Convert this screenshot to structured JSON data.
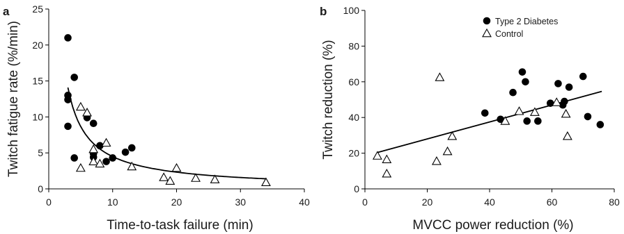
{
  "chart_data": [
    {
      "panel_label": "a",
      "type": "scatter",
      "xlabel": "Time-to-task failure (min)",
      "ylabel": "Twitch fatigue rate (%/min)",
      "xlim": [
        0,
        40
      ],
      "ylim": [
        0,
        25
      ],
      "xticks": [
        "0",
        "10",
        "20",
        "30",
        "40"
      ],
      "yticks": [
        "0",
        "5",
        "10",
        "15",
        "20",
        "25"
      ],
      "series": [
        {
          "name": "Type 2 Diabetes",
          "marker": "filled-circle",
          "points": [
            [
              3,
              21
            ],
            [
              3,
              13
            ],
            [
              3,
              12.4
            ],
            [
              3,
              8.7
            ],
            [
              4,
              15.5
            ],
            [
              4,
              4.3
            ],
            [
              6,
              9.9
            ],
            [
              7,
              4.9
            ],
            [
              7,
              4.4
            ],
            [
              7,
              9.1
            ],
            [
              8,
              6
            ],
            [
              9,
              3.8
            ],
            [
              10,
              4.3
            ],
            [
              12,
              5.1
            ],
            [
              13,
              5.7
            ]
          ]
        },
        {
          "name": "Control",
          "marker": "open-triangle",
          "points": [
            [
              5,
              11.4
            ],
            [
              6,
              10.6
            ],
            [
              7,
              5.5
            ],
            [
              7,
              3.8
            ],
            [
              8,
              3.5
            ],
            [
              9,
              6.4
            ],
            [
              5,
              2.9
            ],
            [
              13,
              3.1
            ],
            [
              18,
              1.6
            ],
            [
              19,
              1.1
            ],
            [
              20,
              2.9
            ],
            [
              23,
              1.5
            ],
            [
              26,
              1.3
            ],
            [
              34,
              0.9
            ]
          ]
        }
      ],
      "fit": {
        "kind": "power",
        "a": 40,
        "b": -0.95,
        "x_range": [
          3,
          34
        ]
      }
    },
    {
      "panel_label": "b",
      "type": "scatter",
      "xlabel": "MVCC power reduction (%)",
      "ylabel": "Twitch reduction (%)",
      "xlim": [
        0,
        80
      ],
      "ylim": [
        0,
        100
      ],
      "xticks": [
        "0",
        "20",
        "40",
        "60",
        "80"
      ],
      "yticks": [
        "0",
        "20",
        "40",
        "60",
        "80",
        "100"
      ],
      "legend": {
        "position": "top-right",
        "entries": [
          {
            "label": "Type 2 Diabetes",
            "marker": "filled-circle"
          },
          {
            "label": "Control",
            "marker": "open-triangle"
          }
        ]
      },
      "series": [
        {
          "name": "Type 2 Diabetes",
          "marker": "filled-circle",
          "points": [
            [
              38.5,
              42.5
            ],
            [
              43.5,
              39
            ],
            [
              47.5,
              54
            ],
            [
              50.5,
              65.5
            ],
            [
              51.5,
              60
            ],
            [
              52,
              38
            ],
            [
              55.5,
              38
            ],
            [
              59.5,
              48
            ],
            [
              62,
              59
            ],
            [
              63.5,
              47
            ],
            [
              64,
              49
            ],
            [
              65.5,
              57
            ],
            [
              70,
              63
            ],
            [
              71.5,
              40.5
            ],
            [
              75.5,
              36
            ]
          ]
        },
        {
          "name": "Control",
          "marker": "open-triangle",
          "points": [
            [
              4,
              18.5
            ],
            [
              7,
              16.5
            ],
            [
              7,
              8.5
            ],
            [
              23,
              15.5
            ],
            [
              24,
              62.5
            ],
            [
              26.5,
              21
            ],
            [
              28,
              29.5
            ],
            [
              45,
              38
            ],
            [
              49.5,
              43.5
            ],
            [
              54.5,
              43
            ],
            [
              61.5,
              48.5
            ],
            [
              64.5,
              42
            ],
            [
              65,
              29.5
            ]
          ]
        }
      ],
      "fit": {
        "kind": "linear",
        "x": [
          4,
          76
        ],
        "y": [
          20.4,
          54.6
        ]
      }
    }
  ]
}
